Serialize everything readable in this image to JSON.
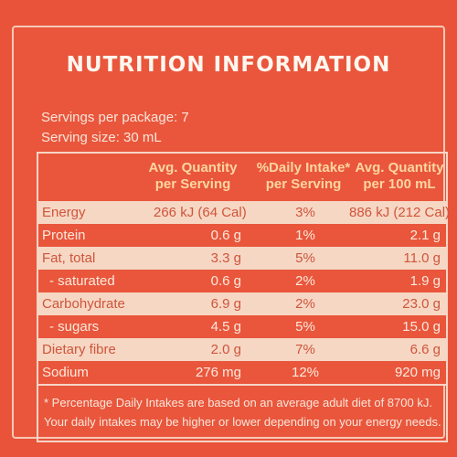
{
  "title": "NUTRITION INFORMATION",
  "servings_per_package": "Servings per package: 7",
  "serving_size": "Serving size: 30 mL",
  "headers": {
    "per_serving": [
      "Avg. Quantity",
      "per Serving"
    ],
    "daily_intake": [
      "%Daily Intake*",
      "per Serving"
    ],
    "per_100": [
      "Avg. Quantity",
      "per 100 mL"
    ]
  },
  "rows": [
    {
      "name": "Energy",
      "per_serving": "266 kJ (64 Cal)",
      "daily": "3%",
      "per_100": "886 kJ (212 Cal)"
    },
    {
      "name": "Protein",
      "per_serving": "0.6 g",
      "daily": "1%",
      "per_100": "2.1 g"
    },
    {
      "name": "Fat, total",
      "per_serving": "3.3 g",
      "daily": "5%",
      "per_100": "11.0 g"
    },
    {
      "name": "- saturated",
      "per_serving": "0.6 g",
      "daily": "2%",
      "per_100": "1.9 g"
    },
    {
      "name": "Carbohydrate",
      "per_serving": "6.9 g",
      "daily": "2%",
      "per_100": "23.0 g"
    },
    {
      "name": "- sugars",
      "per_serving": "4.5 g",
      "daily": "5%",
      "per_100": "15.0 g"
    },
    {
      "name": "Dietary fibre",
      "per_serving": "2.0 g",
      "daily": "7%",
      "per_100": "6.6 g"
    },
    {
      "name": "Sodium",
      "per_serving": "276 mg",
      "daily": "12%",
      "per_100": "920 mg"
    }
  ],
  "footnote": [
    "* Percentage Daily Intakes are based on an average adult diet of 8700 kJ.",
    "Your daily intakes may be higher or lower depending on your energy needs."
  ]
}
